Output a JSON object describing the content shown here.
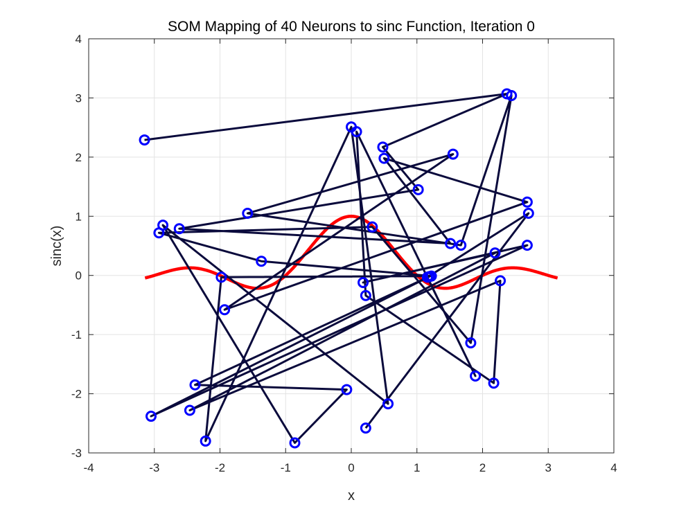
{
  "chart_data": {
    "type": "line",
    "title": "SOM Mapping of 40 Neurons to sinc Function, Iteration 0",
    "xlabel": "x",
    "ylabel": "sinc(x)",
    "xlim": [
      -4,
      4
    ],
    "ylim": [
      -3,
      4
    ],
    "xticks": [
      -4,
      -3,
      -2,
      -1,
      0,
      1,
      2,
      3,
      4
    ],
    "yticks": [
      -3,
      -2,
      -1,
      0,
      1,
      2,
      3,
      4
    ],
    "grid": true,
    "sinc_curve": {
      "function": "sin(pi*x)/(pi*x)",
      "x_range": [
        -3.1416,
        3.1416
      ],
      "color": "#ff0000"
    },
    "neurons": {
      "marker_color": "#0000ff",
      "line_color": "#0a0a3c",
      "points": [
        [
          -3.15,
          2.29
        ],
        [
          2.37,
          3.07
        ],
        [
          0.48,
          2.17
        ],
        [
          1.02,
          1.45
        ],
        [
          -2.62,
          0.79
        ],
        [
          1.51,
          0.54
        ],
        [
          0.5,
          1.98
        ],
        [
          2.68,
          1.24
        ],
        [
          -1.93,
          -0.58
        ],
        [
          1.55,
          2.05
        ],
        [
          -1.58,
          1.05
        ],
        [
          1.67,
          0.51
        ],
        [
          2.44,
          3.04
        ],
        [
          1.82,
          -1.14
        ],
        [
          0.32,
          0.82
        ],
        [
          -2.93,
          0.72
        ],
        [
          -1.37,
          0.24
        ],
        [
          1.22,
          -0.01
        ],
        [
          -1.98,
          -0.03
        ],
        [
          -2.22,
          -2.8
        ],
        [
          0.0,
          2.51
        ],
        [
          0.56,
          -2.17
        ],
        [
          -2.87,
          0.85
        ],
        [
          -0.86,
          -2.83
        ],
        [
          -0.07,
          -1.93
        ],
        [
          -2.38,
          -1.85
        ],
        [
          1.19,
          -0.02
        ],
        [
          -3.05,
          -2.38
        ],
        [
          2.68,
          0.51
        ],
        [
          0.18,
          -0.12
        ],
        [
          2.19,
          0.38
        ],
        [
          -2.46,
          -2.28
        ],
        [
          2.27,
          -0.09
        ],
        [
          2.17,
          -1.82
        ],
        [
          0.22,
          -0.34
        ],
        [
          0.08,
          2.43
        ],
        [
          1.89,
          -1.7
        ],
        [
          1.16,
          -0.03
        ],
        [
          2.7,
          1.05
        ],
        [
          0.22,
          -2.58
        ]
      ]
    }
  }
}
